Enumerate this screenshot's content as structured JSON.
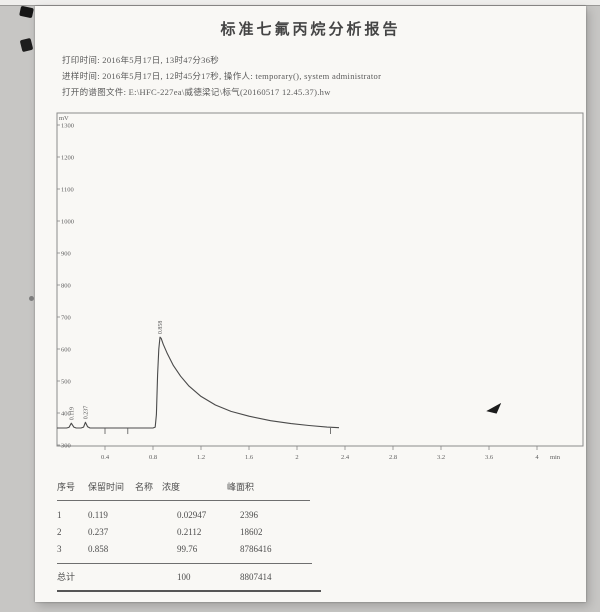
{
  "page": {
    "title": "标准七氟丙烷分析报告",
    "info_lines": [
      "打印时间: 2016年5月17日, 13时47分36秒",
      "进样时间: 2016年5月17日, 12时45分17秒, 操作人: temporary(), system administrator",
      "打开的谱图文件: E:\\HFC-227ea\\威德梁记\\标气(20160517 12.45.37).hw"
    ]
  },
  "chart_data": {
    "type": "line",
    "title": "",
    "xlabel": "min",
    "ylabel": "mV",
    "x_unit": "min",
    "xlim": [
      0,
      4.38
    ],
    "ylim": [
      300,
      1350
    ],
    "grid": false,
    "legend": "none",
    "y_ticks": [
      1300,
      1200,
      1100,
      1000,
      900,
      800,
      700,
      600,
      500,
      400,
      300
    ],
    "x_ticks": [
      {
        "t": 0.4,
        "label": "0.4"
      },
      {
        "t": 0.8,
        "label": "0.8"
      },
      {
        "t": 1.2,
        "label": "1.2"
      },
      {
        "t": 1.6,
        "label": "1.6"
      },
      {
        "t": 2.0,
        "label": "2"
      },
      {
        "t": 2.4,
        "label": "2.4"
      },
      {
        "t": 2.8,
        "label": "2.8"
      },
      {
        "t": 3.2,
        "label": "3.2"
      },
      {
        "t": 3.6,
        "label": "3.6"
      },
      {
        "t": 4.0,
        "label": "4"
      }
    ],
    "baseline_mV": 353,
    "baseline_marks_t": [
      0.4,
      0.59,
      2.28
    ],
    "peak_labels": [
      {
        "t": 0.119,
        "apex_mV": 368,
        "label": "0.119"
      },
      {
        "t": 0.237,
        "apex_mV": 371,
        "label": "0.237"
      },
      {
        "t": 0.858,
        "apex_mV": 637,
        "label": "0.858"
      }
    ],
    "trace_t_mV": [
      [
        0.0,
        353
      ],
      [
        0.08,
        353
      ],
      [
        0.1,
        355
      ],
      [
        0.119,
        368
      ],
      [
        0.14,
        356
      ],
      [
        0.16,
        353
      ],
      [
        0.2,
        353
      ],
      [
        0.222,
        356
      ],
      [
        0.237,
        371
      ],
      [
        0.255,
        357
      ],
      [
        0.275,
        353
      ],
      [
        0.6,
        353
      ],
      [
        0.8,
        353
      ],
      [
        0.818,
        356
      ],
      [
        0.828,
        395
      ],
      [
        0.838,
        520
      ],
      [
        0.848,
        600
      ],
      [
        0.858,
        637
      ],
      [
        0.868,
        633
      ],
      [
        0.885,
        615
      ],
      [
        0.92,
        585
      ],
      [
        0.97,
        548
      ],
      [
        1.03,
        515
      ],
      [
        1.1,
        484
      ],
      [
        1.2,
        452
      ],
      [
        1.32,
        425
      ],
      [
        1.45,
        405
      ],
      [
        1.6,
        390
      ],
      [
        1.78,
        376
      ],
      [
        1.95,
        367
      ],
      [
        2.1,
        361
      ],
      [
        2.25,
        356
      ],
      [
        2.35,
        354
      ]
    ]
  },
  "table": {
    "headers": [
      "序号",
      "保留时间",
      "名称",
      "浓度",
      "峰面积"
    ],
    "rows": [
      {
        "no": "1",
        "retention": "0.119",
        "name": "",
        "concentration": "0.02947",
        "area": "2396"
      },
      {
        "no": "2",
        "retention": "0.237",
        "name": "",
        "concentration": "0.2112",
        "area": "18602"
      },
      {
        "no": "3",
        "retention": "0.858",
        "name": "",
        "concentration": "99.76",
        "area": "8786416"
      }
    ],
    "total": {
      "label": "总计",
      "concentration": "100",
      "area": "8807414"
    }
  }
}
